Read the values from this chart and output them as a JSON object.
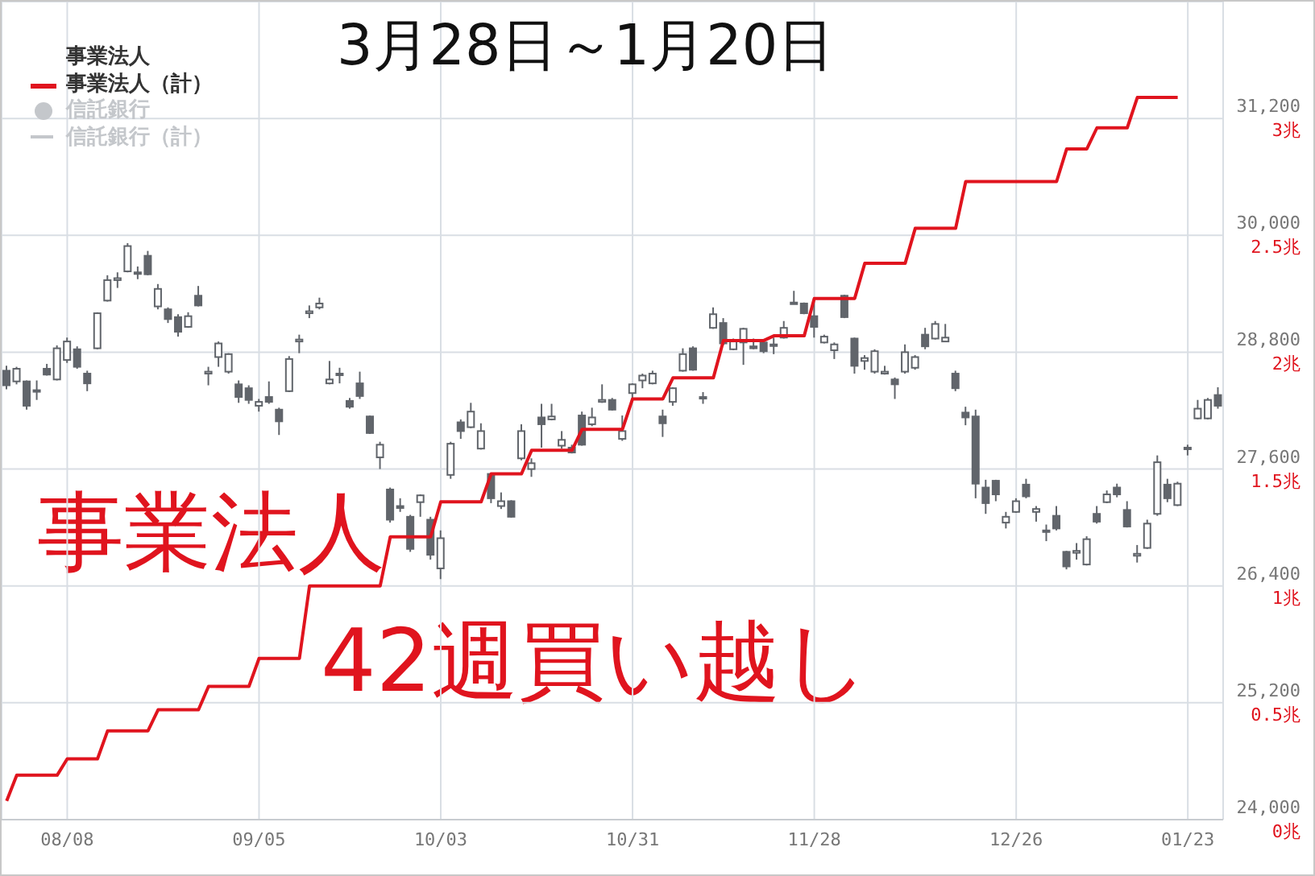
{
  "chart_data": {
    "type": "candlestick",
    "title": "3月28日～1月20日",
    "color": "#61656b",
    "categories": [
      null,
      null,
      null,
      null,
      null,
      null,
      "08/08",
      null,
      null,
      null,
      null,
      null,
      null,
      null,
      null,
      null,
      null,
      null,
      null,
      null,
      null,
      null,
      null,
      null,
      null,
      "09/05",
      null,
      null,
      null,
      null,
      null,
      null,
      null,
      null,
      null,
      null,
      null,
      null,
      null,
      null,
      null,
      null,
      null,
      "10/03",
      null,
      null,
      null,
      null,
      null,
      null,
      null,
      null,
      null,
      null,
      null,
      null,
      null,
      null,
      null,
      null,
      null,
      null,
      "10/31",
      null,
      null,
      null,
      null,
      null,
      null,
      null,
      null,
      null,
      null,
      null,
      null,
      null,
      null,
      null,
      null,
      null,
      "11/28",
      null,
      null,
      null,
      null,
      null,
      null,
      null,
      null,
      null,
      null,
      null,
      null,
      null,
      null,
      null,
      null,
      null,
      null,
      null,
      "12/26",
      null,
      null,
      null,
      null,
      null,
      null,
      null,
      null,
      null,
      null,
      null,
      null,
      null,
      null,
      null,
      null,
      "01/23",
      null,
      null,
      null
    ],
    "ohlc": [
      [
        28610,
        28660,
        28420,
        28460
      ],
      [
        28500,
        28650,
        28470,
        28630
      ],
      [
        28500,
        28510,
        28210,
        28250
      ],
      [
        28400,
        28510,
        28310,
        28410
      ],
      [
        28630,
        28680,
        28560,
        28570
      ],
      [
        28520,
        28870,
        28510,
        28840
      ],
      [
        28720,
        28950,
        28690,
        28910
      ],
      [
        28830,
        28860,
        28630,
        28650
      ],
      [
        28580,
        28610,
        28400,
        28480
      ],
      [
        28840,
        29210,
        28830,
        29200
      ],
      [
        29330,
        29590,
        29320,
        29540
      ],
      [
        29540,
        29620,
        29460,
        29560
      ],
      [
        29630,
        29920,
        29620,
        29890
      ],
      [
        29610,
        29680,
        29550,
        29620
      ],
      [
        29790,
        29840,
        29590,
        29600
      ],
      [
        29270,
        29500,
        29240,
        29450
      ],
      [
        29240,
        29260,
        29100,
        29140
      ],
      [
        29160,
        29190,
        28960,
        29010
      ],
      [
        29060,
        29210,
        29050,
        29170
      ],
      [
        29380,
        29480,
        29270,
        29280
      ],
      [
        28580,
        28650,
        28460,
        28600
      ],
      [
        28750,
        28910,
        28650,
        28890
      ],
      [
        28600,
        28790,
        28580,
        28780
      ],
      [
        28470,
        28510,
        28280,
        28340
      ],
      [
        28430,
        28460,
        28270,
        28310
      ],
      [
        28250,
        28320,
        28190,
        28290
      ],
      [
        28340,
        28500,
        28270,
        28290
      ],
      [
        28210,
        28230,
        27950,
        28090
      ],
      [
        28400,
        28760,
        28390,
        28730
      ],
      [
        28910,
        28980,
        28790,
        28930
      ],
      [
        29200,
        29280,
        29150,
        29220
      ],
      [
        29260,
        29360,
        29240,
        29300
      ],
      [
        28480,
        28710,
        28470,
        28520
      ],
      [
        28570,
        28640,
        28480,
        28580
      ],
      [
        28300,
        28330,
        28220,
        28240
      ],
      [
        28480,
        28600,
        28320,
        28350
      ],
      [
        28140,
        28150,
        27960,
        27970
      ],
      [
        27720,
        27880,
        27600,
        27850
      ],
      [
        27390,
        27410,
        27050,
        27080
      ],
      [
        27220,
        27300,
        27160,
        27200
      ],
      [
        27110,
        27130,
        26750,
        26780
      ],
      [
        27260,
        27340,
        27110,
        27330
      ],
      [
        27080,
        27110,
        26670,
        26720
      ],
      [
        26580,
        26970,
        26470,
        26890
      ],
      [
        27540,
        27880,
        27500,
        27860
      ],
      [
        28080,
        28110,
        27910,
        27990
      ],
      [
        28030,
        28280,
        28020,
        28190
      ],
      [
        27810,
        28070,
        27800,
        27990
      ],
      [
        27550,
        27560,
        27250,
        27300
      ],
      [
        27220,
        27360,
        27190,
        27270
      ],
      [
        27270,
        27280,
        27100,
        27110
      ],
      [
        27710,
        28060,
        27690,
        27990
      ],
      [
        27600,
        27710,
        27520,
        27660
      ],
      [
        28130,
        28270,
        27820,
        28060
      ],
      [
        28110,
        28270,
        28100,
        28140
      ],
      [
        27840,
        27990,
        27810,
        27900
      ],
      [
        27820,
        27850,
        27760,
        27770
      ],
      [
        28150,
        28190,
        27840,
        27850
      ],
      [
        28060,
        28230,
        28040,
        28130
      ],
      [
        28290,
        28470,
        28280,
        28310
      ],
      [
        28310,
        28330,
        28200,
        28210
      ],
      [
        27910,
        28150,
        27890,
        27990
      ],
      [
        28380,
        28480,
        28320,
        28470
      ],
      [
        28510,
        28580,
        28430,
        28560
      ],
      [
        28480,
        28610,
        28470,
        28580
      ],
      [
        28140,
        28210,
        27930,
        28070
      ],
      [
        28290,
        28440,
        28250,
        28430
      ],
      [
        28610,
        28840,
        28600,
        28780
      ],
      [
        28840,
        28860,
        28610,
        28620
      ],
      [
        28330,
        28390,
        28270,
        28340
      ],
      [
        29050,
        29260,
        29040,
        29190
      ],
      [
        29100,
        29150,
        28870,
        28890
      ],
      [
        28830,
        28940,
        28820,
        28910
      ],
      [
        28900,
        29050,
        28670,
        29040
      ],
      [
        28860,
        28940,
        28830,
        28840
      ],
      [
        28900,
        28930,
        28790,
        28810
      ],
      [
        28870,
        28950,
        28780,
        28880
      ],
      [
        28950,
        29120,
        28940,
        29050
      ],
      [
        29300,
        29430,
        29300,
        29310
      ],
      [
        29300,
        29310,
        29190,
        29200
      ],
      [
        29170,
        29340,
        28950,
        29060
      ],
      [
        28900,
        28980,
        28890,
        28960
      ],
      [
        28820,
        28900,
        28730,
        28880
      ],
      [
        29380,
        29390,
        29150,
        29160
      ],
      [
        28940,
        28950,
        28580,
        28660
      ],
      [
        28710,
        28770,
        28620,
        28740
      ],
      [
        28600,
        28830,
        28580,
        28810
      ],
      [
        28580,
        28660,
        28570,
        28600
      ],
      [
        28520,
        28540,
        28320,
        28470
      ],
      [
        28600,
        28880,
        28580,
        28800
      ],
      [
        28640,
        28770,
        28620,
        28750
      ],
      [
        28980,
        29050,
        28830,
        28860
      ],
      [
        28940,
        29120,
        28930,
        29090
      ],
      [
        28910,
        29090,
        28910,
        28950
      ],
      [
        28580,
        28610,
        28400,
        28430
      ],
      [
        28180,
        28240,
        28050,
        28130
      ],
      [
        28140,
        28210,
        27300,
        27450
      ],
      [
        27410,
        27490,
        27140,
        27250
      ],
      [
        27480,
        27490,
        27270,
        27340
      ],
      [
        27050,
        27160,
        26990,
        27110
      ],
      [
        27160,
        27300,
        27150,
        27270
      ],
      [
        27440,
        27500,
        27300,
        27320
      ],
      [
        27160,
        27220,
        27060,
        27190
      ],
      [
        26970,
        27030,
        26860,
        26960
      ],
      [
        27120,
        27220,
        26970,
        26990
      ],
      [
        26750,
        26760,
        26570,
        26600
      ],
      [
        26740,
        26840,
        26670,
        26760
      ],
      [
        26620,
        26910,
        26610,
        26880
      ],
      [
        27140,
        27220,
        27040,
        27060
      ],
      [
        27260,
        27380,
        27250,
        27340
      ],
      [
        27410,
        27450,
        27310,
        27340
      ],
      [
        27180,
        27270,
        27000,
        27010
      ],
      [
        26710,
        26820,
        26640,
        26730
      ],
      [
        26790,
        27080,
        26780,
        27040
      ],
      [
        27140,
        27740,
        27120,
        27670
      ],
      [
        27440,
        27500,
        27260,
        27300
      ],
      [
        27230,
        27470,
        27220,
        27450
      ],
      [
        27810,
        27850,
        27740,
        27820
      ],
      [
        28120,
        28310,
        28110,
        28220
      ],
      [
        28120,
        28330,
        28110,
        28310
      ],
      [
        28360,
        28440,
        28220,
        28250
      ]
    ],
    "series": [
      {
        "type": "line",
        "name": "事業法人（計）",
        "color": "#e0141e",
        "axis": "y2",
        "values": [
          0.08,
          0.19,
          0.19,
          0.19,
          0.19,
          0.19,
          0.26,
          0.26,
          0.26,
          0.26,
          0.38,
          0.38,
          0.38,
          0.38,
          0.38,
          0.47,
          0.47,
          0.47,
          0.47,
          0.47,
          0.57,
          0.57,
          0.57,
          0.57,
          0.57,
          0.69,
          0.69,
          0.69,
          0.69,
          0.69,
          1.0,
          1.0,
          1.0,
          1.0,
          1.0,
          1.0,
          1.0,
          1.0,
          1.21,
          1.21,
          1.21,
          1.21,
          1.21,
          1.36,
          1.36,
          1.36,
          1.36,
          1.36,
          1.48,
          1.48,
          1.48,
          1.48,
          1.58,
          1.58,
          1.58,
          1.58,
          1.58,
          1.67,
          1.67,
          1.67,
          1.67,
          1.67,
          1.8,
          1.8,
          1.8,
          1.8,
          1.89,
          1.89,
          1.89,
          1.89,
          1.89,
          2.05,
          2.05,
          2.05,
          2.05,
          2.05,
          2.07,
          2.07,
          2.07,
          2.07,
          2.23,
          2.23,
          2.23,
          2.23,
          2.23,
          2.38,
          2.38,
          2.38,
          2.38,
          2.38,
          2.53,
          2.53,
          2.53,
          2.53,
          2.53,
          2.73,
          2.73,
          2.73,
          2.73,
          2.73,
          2.73,
          2.73,
          2.73,
          2.73,
          2.73,
          2.87,
          2.87,
          2.87,
          2.96,
          2.96,
          2.96,
          2.96,
          3.09,
          3.09,
          3.09,
          3.09,
          3.09,
          null,
          null,
          null,
          null
        ]
      }
    ],
    "ylim": [
      24000,
      32400
    ],
    "yticks": [
      {
        "value": 24000,
        "label": "24,000"
      },
      {
        "value": 25200,
        "label": "25,200"
      },
      {
        "value": 26400,
        "label": "26,400"
      },
      {
        "value": 27600,
        "label": "27,600"
      },
      {
        "value": 28800,
        "label": "28,800"
      },
      {
        "value": 30000,
        "label": "30,000"
      },
      {
        "value": 31200,
        "label": "31,200"
      }
    ],
    "y2lim": [
      0,
      3.5
    ],
    "y2ticks": [
      {
        "value": 0,
        "label": "0兆"
      },
      {
        "value": 0.5,
        "label": "0.5兆"
      },
      {
        "value": 1,
        "label": "1兆"
      },
      {
        "value": 1.5,
        "label": "1.5兆"
      },
      {
        "value": 2,
        "label": "2兆"
      },
      {
        "value": 2.5,
        "label": "2.5兆"
      },
      {
        "value": 3,
        "label": "3兆"
      }
    ],
    "grid": true,
    "legend": "top left",
    "annotations": [
      "事業法人",
      "信託銀行",
      "信託銀行（計）",
      "事業法人",
      "42週買い越し"
    ]
  }
}
